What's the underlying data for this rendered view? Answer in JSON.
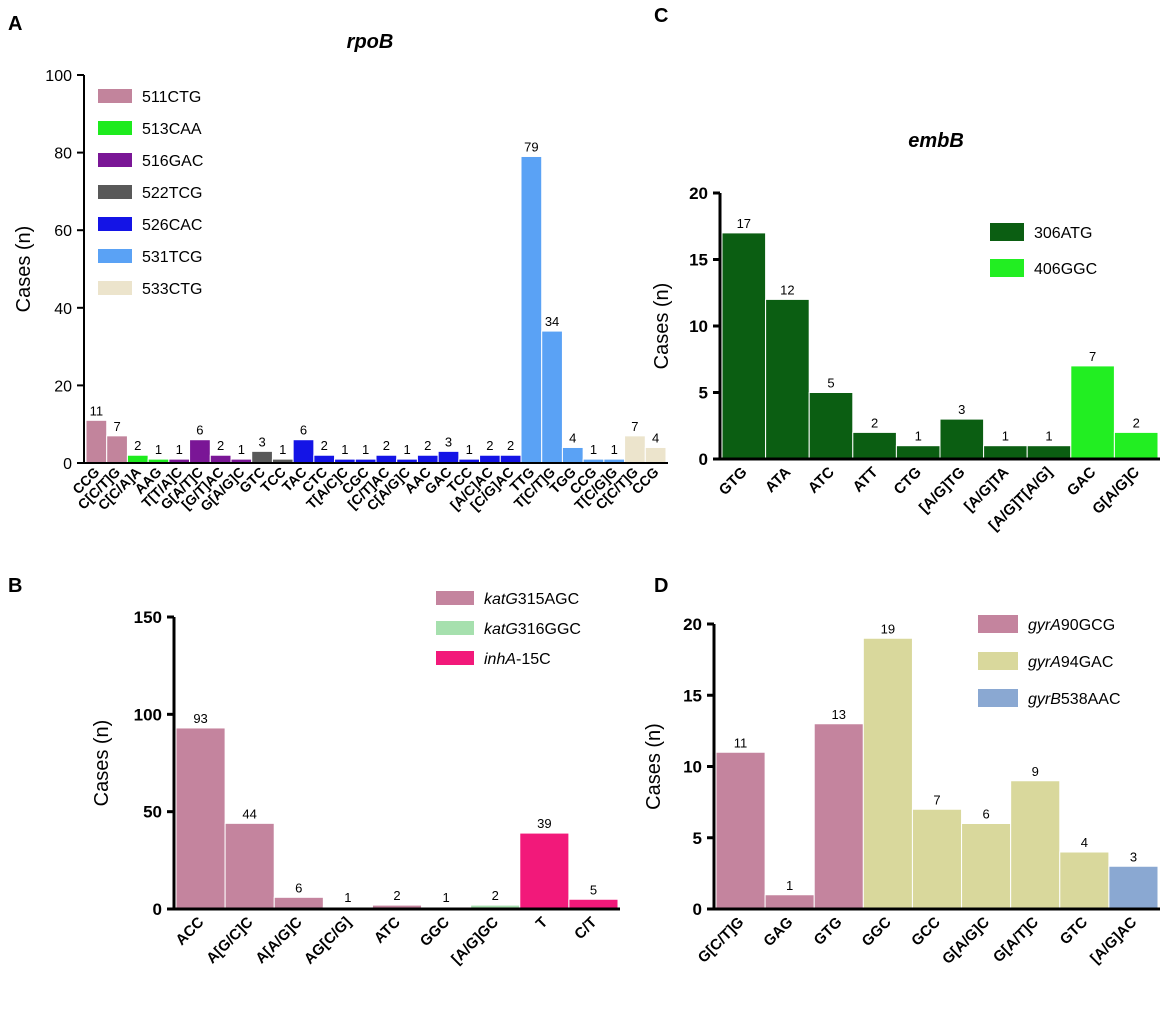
{
  "chart_data": [
    {
      "panel": "A",
      "type": "bar",
      "title": "rpoB",
      "ylabel": "Cases (n)",
      "xlabel": "",
      "ylim": [
        0,
        100
      ],
      "yticks": [
        "0",
        "20",
        "40",
        "60",
        "80",
        "100"
      ],
      "legend_position": "top-left",
      "series": [
        {
          "name": "511CTG",
          "color": "#c2849c"
        },
        {
          "name": "513CAA",
          "color": "#1eeb1e"
        },
        {
          "name": "516GAC",
          "color": "#7a1696"
        },
        {
          "name": "522TCG",
          "color": "#595959"
        },
        {
          "name": "526CAC",
          "color": "#1414e6"
        },
        {
          "name": "531TCG",
          "color": "#5aa2f5"
        },
        {
          "name": "533CTG",
          "color": "#ece4cc"
        }
      ],
      "categories": [
        "CCG",
        "C[C/T]G",
        "C[C/A]A",
        "AAG",
        "T[T/A]C",
        "G[A/T]C",
        "[G/T]AC",
        "G[A/G]C",
        "GTC",
        "TCC",
        "TAC",
        "CTC",
        "T[A/C]C",
        "CGC",
        "[C/T]AC",
        "C[A/G]C",
        "AAC",
        "GAC",
        "TCC",
        "[A/C]AC",
        "[C/G]AC",
        "TTG",
        "T[C/T]G",
        "TGG",
        "CCG",
        "T[C/G]G",
        "C[C/T]G",
        "CCG"
      ],
      "bar_series": [
        0,
        0,
        1,
        1,
        2,
        2,
        2,
        2,
        3,
        3,
        4,
        4,
        4,
        4,
        4,
        4,
        4,
        4,
        4,
        4,
        4,
        5,
        5,
        5,
        5,
        5,
        6,
        6
      ],
      "values": [
        11,
        7,
        2,
        1,
        1,
        6,
        2,
        1,
        3,
        1,
        6,
        2,
        1,
        1,
        2,
        1,
        2,
        3,
        1,
        2,
        2,
        79,
        34,
        4,
        1,
        1,
        7,
        4
      ],
      "data_labels": [
        "11",
        "7",
        "2",
        "1",
        "1",
        "6",
        "2",
        "1",
        "3",
        "1",
        "6",
        "2",
        "1",
        "1",
        "2",
        "1",
        "2",
        "3",
        "1",
        "2",
        "2",
        "79",
        "34",
        "4",
        "1",
        "1",
        "7",
        "4"
      ]
    },
    {
      "panel": "B",
      "type": "bar",
      "title": "",
      "ylabel": "Cases (n)",
      "xlabel": "",
      "ylim": [
        0,
        150
      ],
      "yticks": [
        "0",
        "50",
        "100",
        "150"
      ],
      "legend_position": "top-right",
      "series": [
        {
          "name": "katG315AGC",
          "name_italic": "katG",
          "name_rest": "315AGC",
          "color": "#c4849e"
        },
        {
          "name": "katG316GGC",
          "name_italic": "katG",
          "name_rest": "316GGC",
          "color": "#a6e0ae"
        },
        {
          "name": "inhA-15C",
          "name_italic": "inhA",
          "name_rest": "-15C",
          "color": "#f2197a"
        }
      ],
      "categories": [
        "ACC",
        "A[G/C]C",
        "A[A/G]C",
        "AG[C/G]",
        "ATC",
        "GGC",
        "[A/G]GC",
        "T",
        "C/T"
      ],
      "bar_series": [
        0,
        0,
        0,
        0,
        0,
        1,
        1,
        2,
        2
      ],
      "values": [
        93,
        44,
        6,
        1,
        2,
        1,
        2,
        39,
        5
      ],
      "data_labels": [
        "93",
        "44",
        "6",
        "1",
        "2",
        "1",
        "2",
        "39",
        "5"
      ]
    },
    {
      "panel": "C",
      "type": "bar",
      "title": "embB",
      "ylabel": "Cases (n)",
      "xlabel": "",
      "ylim": [
        0,
        20
      ],
      "yticks": [
        "0",
        "5",
        "10",
        "15",
        "20"
      ],
      "legend_position": "top-right",
      "series": [
        {
          "name": "306ATG",
          "color": "#0b5e12"
        },
        {
          "name": "406GGC",
          "color": "#22ee22"
        }
      ],
      "categories": [
        "GTG",
        "ATA",
        "ATC",
        "ATT",
        "CTG",
        "[A/G]TG",
        "[A/G]TA",
        "[A/G]T[A/G]",
        "GAC",
        "G[A/G]C"
      ],
      "bar_series": [
        0,
        0,
        0,
        0,
        0,
        0,
        0,
        0,
        1,
        1
      ],
      "values": [
        17,
        12,
        5,
        2,
        1,
        3,
        1,
        1,
        7,
        2
      ],
      "data_labels": [
        "17",
        "12",
        "5",
        "2",
        "1",
        "3",
        "1",
        "1",
        "7",
        "2"
      ]
    },
    {
      "panel": "D",
      "type": "bar",
      "title": "",
      "ylabel": "Cases (n)",
      "xlabel": "",
      "ylim": [
        0,
        20
      ],
      "yticks": [
        "0",
        "5",
        "10",
        "15",
        "20"
      ],
      "legend_position": "top-right",
      "series": [
        {
          "name": "gyrA90GCG",
          "name_italic": "gyrA",
          "name_rest": "90GCG",
          "color": "#c4849e"
        },
        {
          "name": "gyrA94GAC",
          "name_italic": "gyrA",
          "name_rest": "94GAC",
          "color": "#d9d89c"
        },
        {
          "name": "gyrB538AAC",
          "name_italic": "gyrB",
          "name_rest": "538AAC",
          "color": "#8aa8d2"
        }
      ],
      "categories": [
        "G[C/T]G",
        "GAG",
        "GTG",
        "GGC",
        "GCC",
        "G[A/G]C",
        "G[A/T]C",
        "GTC",
        "[A/G]AC"
      ],
      "bar_series": [
        0,
        0,
        0,
        1,
        1,
        1,
        1,
        1,
        2
      ],
      "values": [
        11,
        1,
        13,
        19,
        7,
        6,
        9,
        4,
        3
      ],
      "data_labels": [
        "11",
        "1",
        "13",
        "19",
        "7",
        "6",
        "9",
        "4",
        "3"
      ]
    }
  ]
}
